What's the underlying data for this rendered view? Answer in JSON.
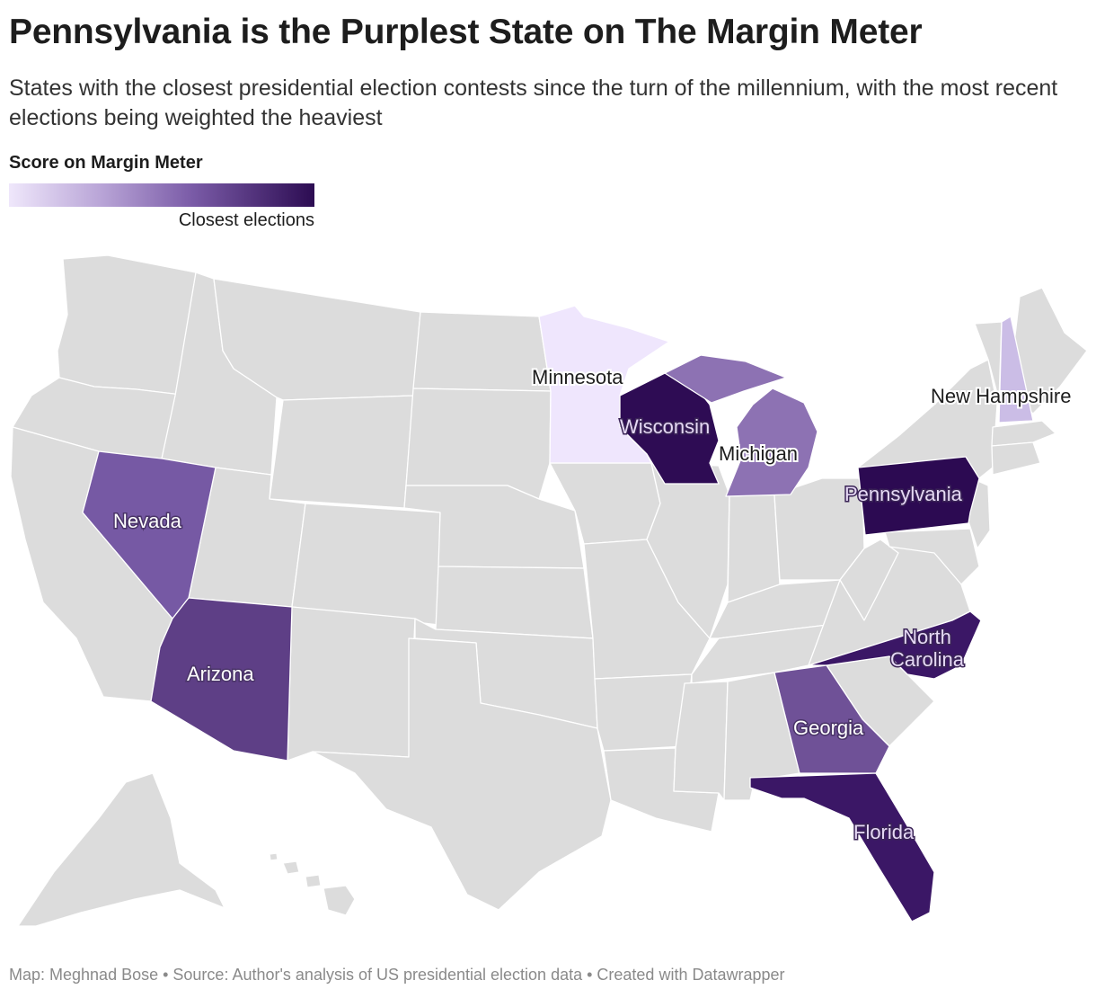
{
  "title": "Pennsylvania is the Purplest State on The Margin Meter",
  "subtitle": "States with the closest presidential election contests since the turn of the millennium, with the most recent elections being weighted the heaviest",
  "legend": {
    "title": "Score on Margin Meter",
    "right_label": "Closest elections",
    "gradient": [
      "#efe7fb",
      "#b9a5d7",
      "#7a5ba7",
      "#2c0c52"
    ]
  },
  "footer": "Map: Meghnad Bose • Source: Author's analysis of US presidential election data • Created with Datawrapper",
  "colors": {
    "base_state": "#dcdcdc",
    "border": "#ffffff"
  },
  "highlighted_states": [
    {
      "key": "pennsylvania",
      "label": "Pennsylvania",
      "color": "#2c0a52",
      "label_style": "lav"
    },
    {
      "key": "wisconsin",
      "label": "Wisconsin",
      "color": "#2e0c54",
      "label_style": "lav"
    },
    {
      "key": "north_carolina",
      "label": "North\nCarolina",
      "color": "#3b1766",
      "label_style": "lav"
    },
    {
      "key": "florida",
      "label": "Florida",
      "color": "#3b1766",
      "label_style": "lav"
    },
    {
      "key": "arizona",
      "label": "Arizona",
      "color": "#5e3f86",
      "label_style": "light"
    },
    {
      "key": "georgia",
      "label": "Georgia",
      "color": "#6f5197",
      "label_style": "light"
    },
    {
      "key": "nevada",
      "label": "Nevada",
      "color": "#7659a4",
      "label_style": "light"
    },
    {
      "key": "michigan",
      "label": "Michigan",
      "color": "#8d72b3",
      "label_style": "dark"
    },
    {
      "key": "new_hampshire",
      "label": "New Hampshire",
      "color": "#cbbde6",
      "label_style": "dark"
    },
    {
      "key": "minnesota",
      "label": "Minnesota",
      "color": "#efe6fd",
      "label_style": "dark"
    }
  ]
}
